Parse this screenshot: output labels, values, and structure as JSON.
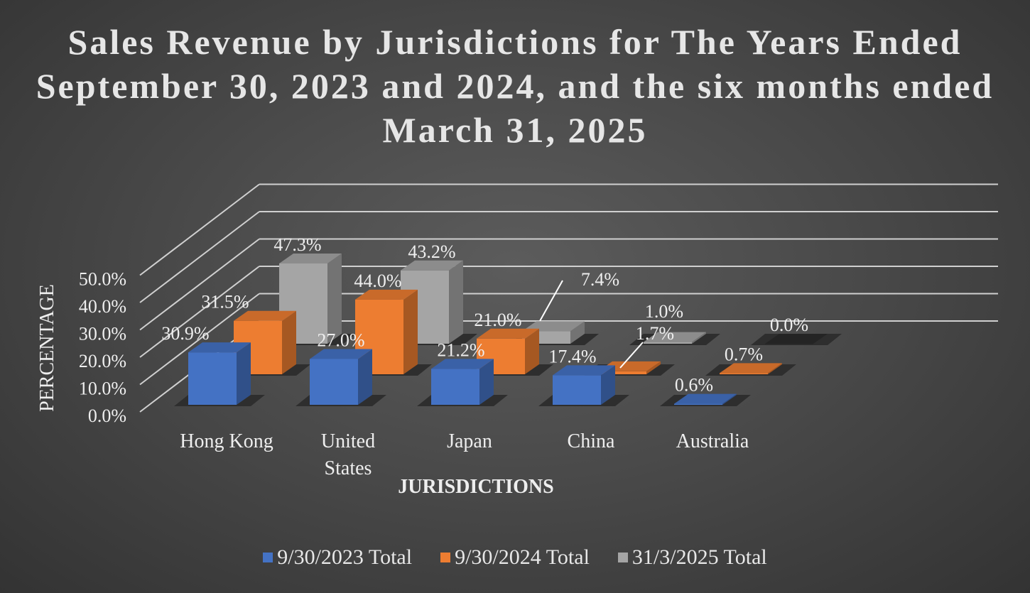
{
  "chart_data": {
    "type": "bar",
    "variant": "3d-column",
    "title": "Sales Revenue by Jurisdictions for The Years Ended September 30, 2023 and 2024, and the six months ended March 31, 2025",
    "xlabel": "JURISDICTIONS",
    "ylabel": "PERCENTAGE",
    "ylim": [
      0,
      50
    ],
    "yticks": [
      "0.0%",
      "10.0%",
      "20.0%",
      "30.0%",
      "40.0%",
      "50.0%"
    ],
    "categories": [
      "Hong Kong",
      "United States",
      "Japan",
      "China",
      "Australia"
    ],
    "series": [
      {
        "name": "9/30/2023 Total",
        "color": "#4472c4",
        "values": [
          30.9,
          27.0,
          21.2,
          17.4,
          0.6
        ],
        "labels": [
          "30.9%",
          "27.0%",
          "21.2%",
          "17.4%",
          "0.6%"
        ]
      },
      {
        "name": "9/30/2024 Total",
        "color": "#ed7d31",
        "values": [
          31.5,
          44.0,
          21.0,
          1.7,
          0.7
        ],
        "labels": [
          "31.5%",
          "44.0%",
          "21.0%",
          "1.7%",
          "0.7%"
        ]
      },
      {
        "name": "31/3/2025 Total",
        "color": "#a5a5a5",
        "values": [
          47.3,
          43.2,
          7.4,
          1.0,
          0.0
        ],
        "labels": [
          "47.3%",
          "43.2%",
          "7.4%",
          "1.0%",
          "0.0%"
        ]
      }
    ],
    "legend_position": "bottom",
    "grid": true
  }
}
